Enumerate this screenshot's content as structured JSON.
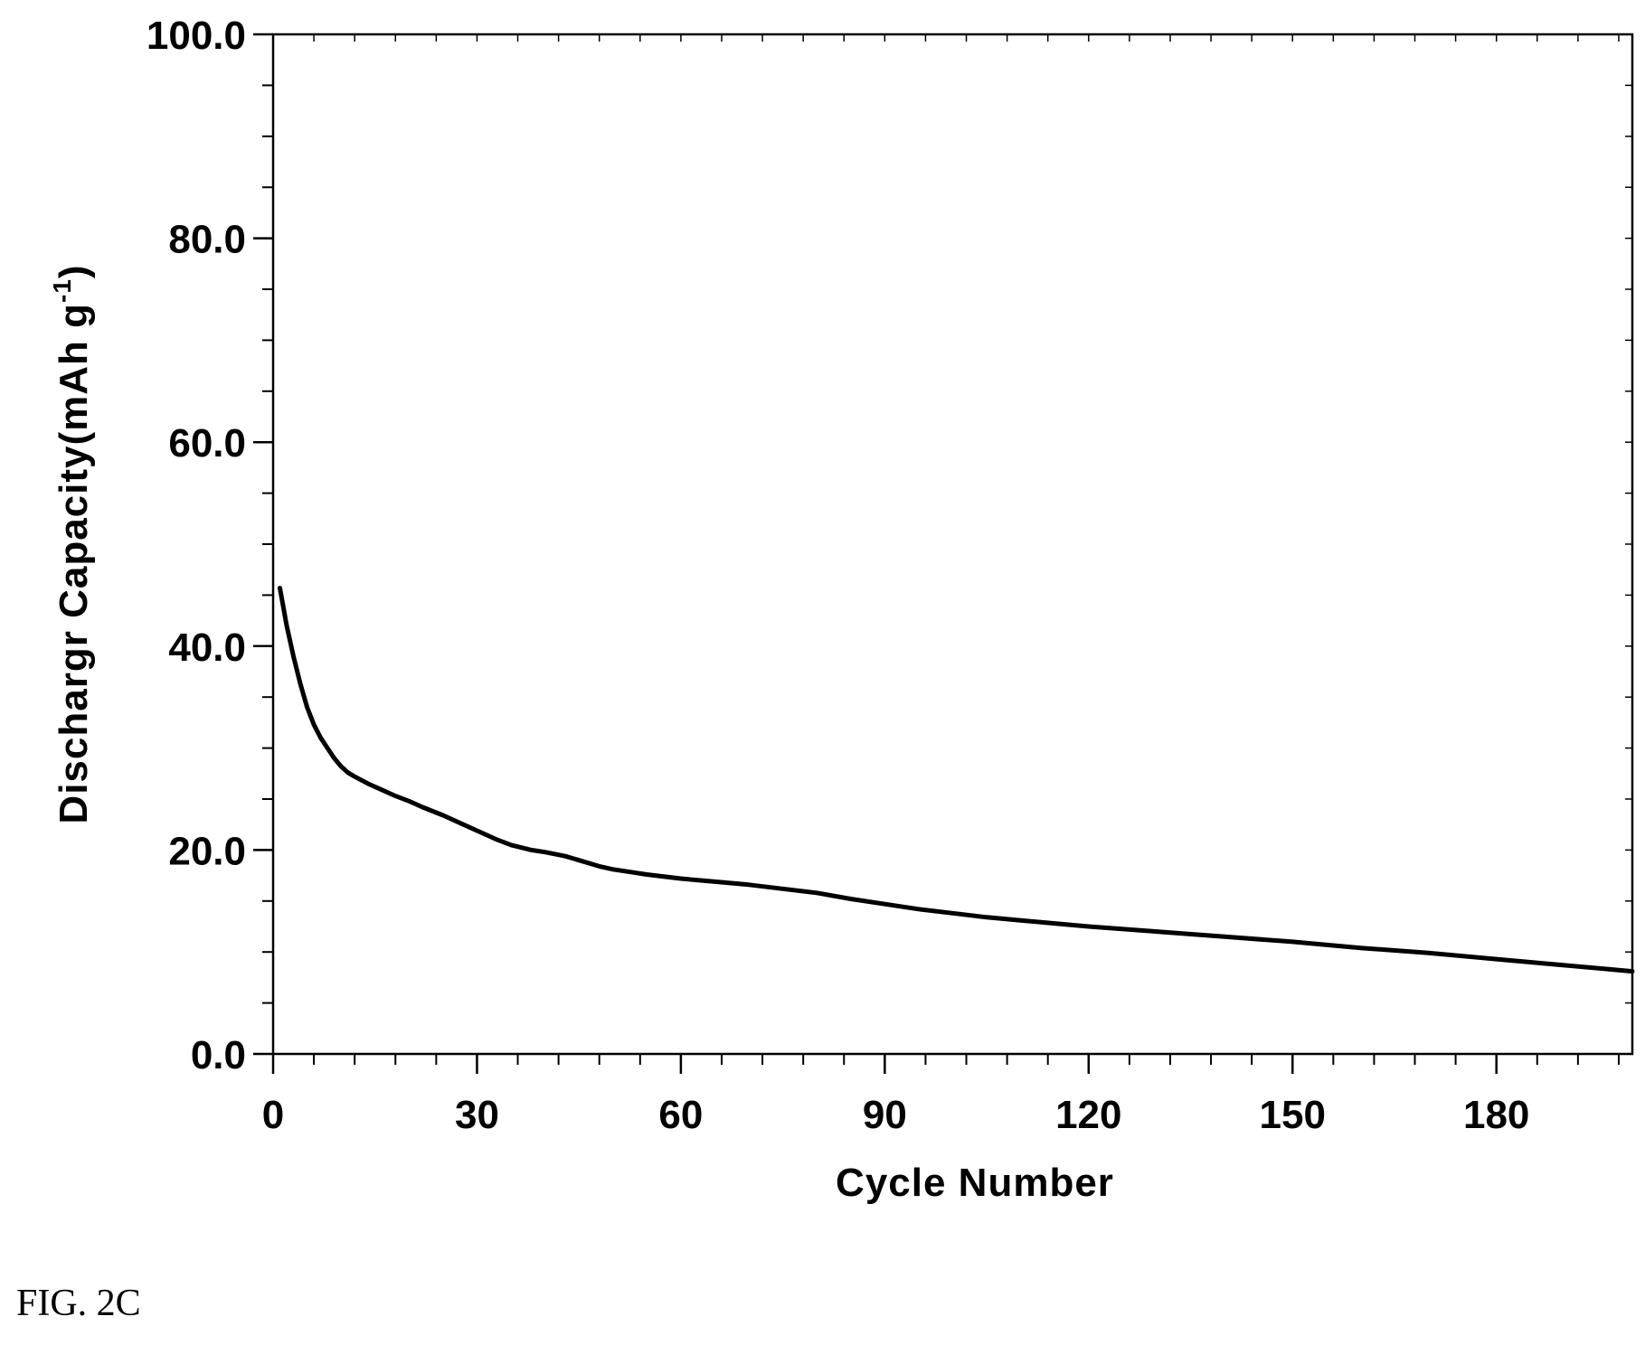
{
  "figure": {
    "caption": "FIG. 2C"
  },
  "chart_data": {
    "type": "line",
    "xlabel": "Cycle Number",
    "ylabel": "Dischargr Capacity(mAh g",
    "ylabel_sup": "-1",
    "ylabel_close": ")",
    "xlim": [
      0,
      200
    ],
    "ylim": [
      0,
      100
    ],
    "x_ticks": [
      0,
      30,
      60,
      90,
      120,
      150,
      180
    ],
    "x_tick_labels": [
      "0",
      "30",
      "60",
      "90",
      "120",
      "150",
      "180"
    ],
    "y_ticks": [
      0,
      20,
      40,
      60,
      80,
      100
    ],
    "y_tick_labels": [
      "0.0",
      "20.0",
      "40.0",
      "60.0",
      "80.0",
      "100.0"
    ],
    "x_minor_step": 6,
    "y_minor_step": 5,
    "grid": false,
    "line_color": "#000000",
    "series": [
      {
        "x": [
          1,
          2,
          3,
          4,
          5,
          6,
          7,
          8,
          9,
          10,
          11,
          12,
          14,
          16,
          18,
          20,
          22,
          25,
          28,
          30,
          33,
          35,
          38,
          40,
          43,
          45,
          48,
          50,
          53,
          55,
          60,
          65,
          70,
          75,
          80,
          85,
          90,
          95,
          100,
          105,
          110,
          115,
          120,
          130,
          140,
          150,
          160,
          170,
          180,
          190,
          200
        ],
        "y": [
          45.7,
          42.0,
          39.0,
          36.3,
          34.0,
          32.3,
          31.0,
          30.0,
          29.0,
          28.2,
          27.6,
          27.2,
          26.5,
          25.9,
          25.3,
          24.8,
          24.2,
          23.4,
          22.5,
          21.9,
          21.0,
          20.5,
          20.0,
          19.8,
          19.4,
          19.0,
          18.4,
          18.1,
          17.8,
          17.6,
          17.2,
          16.9,
          16.6,
          16.2,
          15.8,
          15.2,
          14.7,
          14.2,
          13.8,
          13.4,
          13.1,
          12.8,
          12.5,
          12.0,
          11.5,
          11.0,
          10.4,
          9.9,
          9.3,
          8.7,
          8.1
        ]
      }
    ]
  }
}
